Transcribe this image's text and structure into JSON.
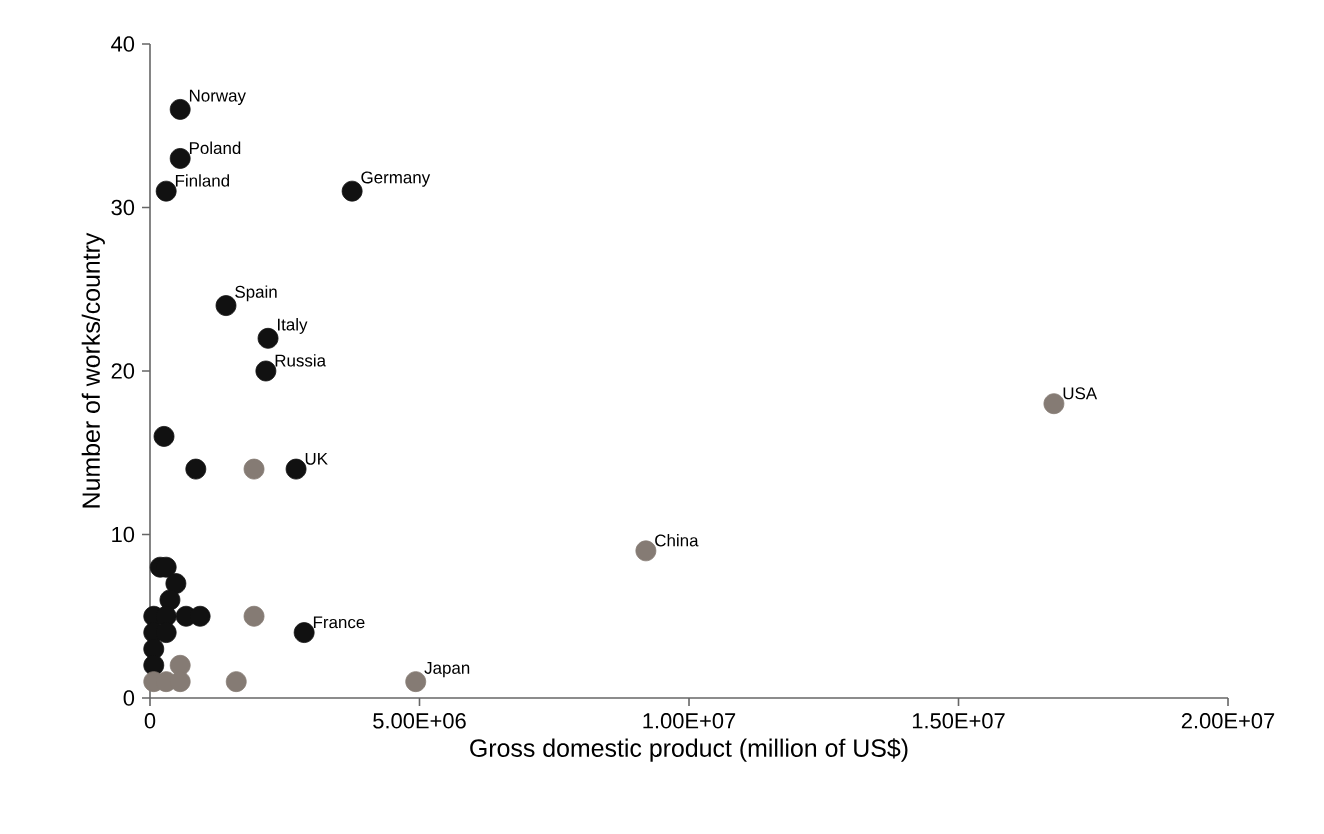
{
  "chart_data": {
    "type": "scatter",
    "xlabel": "Gross domestic product (million of US$)",
    "ylabel": "Number of works/country",
    "xlim": [
      0,
      20000000
    ],
    "ylim": [
      0,
      40
    ],
    "xticks": [
      0,
      {
        "value": 5000000,
        "label": "5.00E+06"
      },
      {
        "value": 10000000,
        "label": "1.00E+07"
      },
      {
        "value": 15000000,
        "label": "1.50E+07"
      },
      {
        "value": 20000000,
        "label": "2.00E+07"
      }
    ],
    "yticks": [
      0,
      10,
      20,
      30,
      40
    ],
    "marker": "circle",
    "series": [
      {
        "color": "#111111",
        "x": [
          560000,
          560000,
          300000,
          3750000,
          1410000,
          2190000,
          2150000,
          260000,
          850000,
          2710000,
          2860000,
          190000,
          300000,
          480000,
          370000,
          70000,
          300000,
          670000,
          930000,
          70000,
          300000,
          70000,
          70000
        ],
        "values": [
          36,
          33,
          31,
          31,
          24,
          22,
          20,
          16,
          14,
          14,
          4,
          8,
          8,
          7,
          6,
          5,
          5,
          5,
          5,
          4,
          4,
          3,
          2
        ]
      },
      {
        "color": "#857b74",
        "x": [
          1930000,
          1930000,
          560000,
          1600000,
          4930000,
          70000,
          300000,
          560000,
          9200000,
          16770000
        ],
        "values": [
          14,
          5,
          2,
          1,
          1,
          1,
          1,
          1,
          9,
          18
        ]
      }
    ],
    "annotations": [
      {
        "text": "Norway",
        "x": 560000,
        "y": 36
      },
      {
        "text": "Poland",
        "x": 560000,
        "y": 33
      },
      {
        "text": "Finland",
        "x": 300000,
        "y": 31
      },
      {
        "text": "Germany",
        "x": 3750000,
        "y": 31
      },
      {
        "text": "Spain",
        "x": 1410000,
        "y": 24
      },
      {
        "text": "Italy",
        "x": 2190000,
        "y": 22
      },
      {
        "text": "Russia",
        "x": 2150000,
        "y": 20
      },
      {
        "text": "UK",
        "x": 2710000,
        "y": 14
      },
      {
        "text": "France",
        "x": 2860000,
        "y": 4
      },
      {
        "text": "Japan",
        "x": 4930000,
        "y": 1
      },
      {
        "text": "China",
        "x": 9200000,
        "y": 9
      },
      {
        "text": "USA",
        "x": 16770000,
        "y": 18
      }
    ]
  }
}
